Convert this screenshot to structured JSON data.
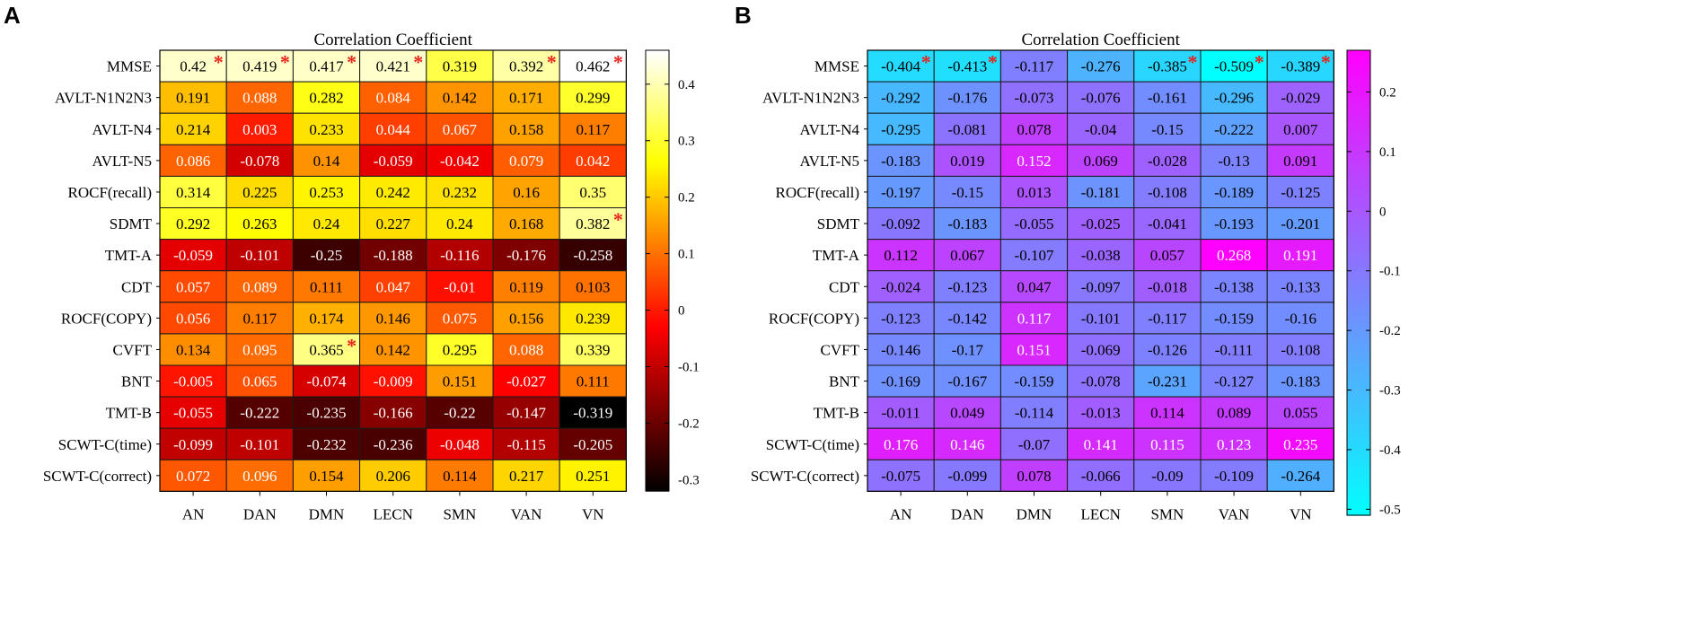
{
  "chart_data": [
    {
      "panel": "A",
      "type": "heatmap",
      "title": "Correlation Coefficient",
      "rows": [
        "MMSE",
        "AVLT-N1N2N3",
        "AVLT-N4",
        "AVLT-N5",
        "ROCF(recall)",
        "SDMT",
        "TMT-A",
        "CDT",
        "ROCF(COPY)",
        "CVFT",
        "BNT",
        "TMT-B",
        "SCWT-C(time)",
        "SCWT-C(correct)"
      ],
      "columns": [
        "AN",
        "DAN",
        "DMN",
        "LECN",
        "SMN",
        "VAN",
        "VN"
      ],
      "values": [
        [
          0.42,
          0.419,
          0.417,
          0.421,
          0.319,
          0.392,
          0.462
        ],
        [
          0.191,
          0.088,
          0.282,
          0.084,
          0.142,
          0.171,
          0.299
        ],
        [
          0.214,
          0.003,
          0.233,
          0.044,
          0.067,
          0.158,
          0.117
        ],
        [
          0.086,
          -0.078,
          0.14,
          -0.059,
          -0.042,
          0.079,
          0.042
        ],
        [
          0.314,
          0.225,
          0.253,
          0.242,
          0.232,
          0.16,
          0.35
        ],
        [
          0.292,
          0.263,
          0.24,
          0.227,
          0.24,
          0.168,
          0.382
        ],
        [
          -0.059,
          -0.101,
          -0.25,
          -0.188,
          -0.116,
          -0.176,
          -0.258
        ],
        [
          0.057,
          0.089,
          0.111,
          0.047,
          -0.01,
          0.119,
          0.103
        ],
        [
          0.056,
          0.117,
          0.174,
          0.146,
          0.075,
          0.156,
          0.239
        ],
        [
          0.134,
          0.095,
          0.365,
          0.142,
          0.295,
          0.088,
          0.339
        ],
        [
          -0.005,
          0.065,
          -0.074,
          -0.009,
          0.151,
          -0.027,
          0.111
        ],
        [
          -0.055,
          -0.222,
          -0.235,
          -0.166,
          -0.22,
          -0.147,
          -0.319
        ],
        [
          -0.099,
          -0.101,
          -0.232,
          -0.236,
          -0.048,
          -0.115,
          -0.205
        ],
        [
          0.072,
          0.096,
          0.154,
          0.206,
          0.114,
          0.217,
          0.251
        ]
      ],
      "labels": [
        [
          "0.42",
          "0.419",
          "0.417",
          "0.421",
          "0.319",
          "0.392",
          "0.462"
        ],
        [
          "0.191",
          "0.088",
          "0.282",
          "0.084",
          "0.142",
          "0.171",
          "0.299"
        ],
        [
          "0.214",
          "0.003",
          "0.233",
          "0.044",
          "0.067",
          "0.158",
          "0.117"
        ],
        [
          "0.086",
          "-0.078",
          "0.14",
          "-0.059",
          "-0.042",
          "0.079",
          "0.042"
        ],
        [
          "0.314",
          "0.225",
          "0.253",
          "0.242",
          "0.232",
          "0.16",
          "0.35"
        ],
        [
          "0.292",
          "0.263",
          "0.24",
          "0.227",
          "0.24",
          "0.168",
          "0.382"
        ],
        [
          "-0.059",
          "-0.101",
          "-0.25",
          "-0.188",
          "-0.116",
          "-0.176",
          "-0.258"
        ],
        [
          "0.057",
          "0.089",
          "0.111",
          "0.047",
          "-0.01",
          "0.119",
          "0.103"
        ],
        [
          "0.056",
          "0.117",
          "0.174",
          "0.146",
          "0.075",
          "0.156",
          "0.239"
        ],
        [
          "0.134",
          "0.095",
          "0.365",
          "0.142",
          "0.295",
          "0.088",
          "0.339"
        ],
        [
          "-0.005",
          "0.065",
          "-0.074",
          "-0.009",
          "0.151",
          "-0.027",
          "0.111"
        ],
        [
          "-0.055",
          "-0.222",
          "-0.235",
          "-0.166",
          "-0.22",
          "-0.147",
          "-0.319"
        ],
        [
          "-0.099",
          "-0.101",
          "-0.232",
          "-0.236",
          "-0.048",
          "-0.115",
          "-0.205"
        ],
        [
          "0.072",
          "0.096",
          "0.154",
          "0.206",
          "0.114",
          "0.217",
          "0.251"
        ]
      ],
      "significant": [
        [
          0,
          0
        ],
        [
          0,
          1
        ],
        [
          0,
          2
        ],
        [
          0,
          3
        ],
        [
          0,
          5
        ],
        [
          0,
          6
        ],
        [
          5,
          6
        ],
        [
          9,
          2
        ]
      ],
      "significance_marker": "*",
      "colormap": "hot",
      "colorbar_range": [
        -0.32,
        0.46
      ],
      "colorbar_ticks": [
        0.4,
        0.3,
        0.2,
        0.1,
        0,
        -0.1,
        -0.2,
        -0.3
      ],
      "colorbar_tick_labels": [
        "0.4",
        "0.3",
        "0.2",
        "0.1",
        "0",
        "-0.1",
        "-0.2",
        "-0.3"
      ]
    },
    {
      "panel": "B",
      "type": "heatmap",
      "title": "Correlation Coefficient",
      "rows": [
        "MMSE",
        "AVLT-N1N2N3",
        "AVLT-N4",
        "AVLT-N5",
        "ROCF(recall)",
        "SDMT",
        "TMT-A",
        "CDT",
        "ROCF(COPY)",
        "CVFT",
        "BNT",
        "TMT-B",
        "SCWT-C(time)",
        "SCWT-C(correct)"
      ],
      "columns": [
        "AN",
        "DAN",
        "DMN",
        "LECN",
        "SMN",
        "VAN",
        "VN"
      ],
      "values": [
        [
          -0.404,
          -0.413,
          -0.117,
          -0.276,
          -0.385,
          -0.509,
          -0.389
        ],
        [
          -0.292,
          -0.176,
          -0.073,
          -0.076,
          -0.161,
          -0.296,
          -0.029
        ],
        [
          -0.295,
          -0.081,
          0.078,
          -0.04,
          -0.15,
          -0.222,
          0.007
        ],
        [
          -0.183,
          0.019,
          0.152,
          0.069,
          -0.028,
          -0.13,
          0.091
        ],
        [
          -0.197,
          -0.15,
          0.013,
          -0.181,
          -0.108,
          -0.189,
          -0.125
        ],
        [
          -0.092,
          -0.183,
          -0.055,
          -0.025,
          -0.041,
          -0.193,
          -0.201
        ],
        [
          0.112,
          0.067,
          -0.107,
          -0.038,
          0.057,
          0.268,
          0.191
        ],
        [
          -0.024,
          -0.123,
          0.047,
          -0.097,
          -0.018,
          -0.138,
          -0.133
        ],
        [
          -0.123,
          -0.142,
          0.117,
          -0.101,
          -0.117,
          -0.159,
          -0.16
        ],
        [
          -0.146,
          -0.17,
          0.151,
          -0.069,
          -0.126,
          -0.111,
          -0.108
        ],
        [
          -0.169,
          -0.167,
          -0.159,
          -0.078,
          -0.231,
          -0.127,
          -0.183
        ],
        [
          -0.011,
          0.049,
          -0.114,
          -0.013,
          0.114,
          0.089,
          0.055
        ],
        [
          0.176,
          0.146,
          -0.07,
          0.141,
          0.115,
          0.123,
          0.235
        ],
        [
          -0.075,
          -0.099,
          0.078,
          -0.066,
          -0.09,
          -0.109,
          -0.264
        ]
      ],
      "labels": [
        [
          "-0.404",
          "-0.413",
          "-0.117",
          "-0.276",
          "-0.385",
          "-0.509",
          "-0.389"
        ],
        [
          "-0.292",
          "-0.176",
          "-0.073",
          "-0.076",
          "-0.161",
          "-0.296",
          "-0.029"
        ],
        [
          "-0.295",
          "-0.081",
          "0.078",
          "-0.04",
          "-0.15",
          "-0.222",
          "0.007"
        ],
        [
          "-0.183",
          "0.019",
          "0.152",
          "0.069",
          "-0.028",
          "-0.13",
          "0.091"
        ],
        [
          "-0.197",
          "-0.15",
          "0.013",
          "-0.181",
          "-0.108",
          "-0.189",
          "-0.125"
        ],
        [
          "-0.092",
          "-0.183",
          "-0.055",
          "-0.025",
          "-0.041",
          "-0.193",
          "-0.201"
        ],
        [
          "0.112",
          "0.067",
          "-0.107",
          "-0.038",
          "0.057",
          "0.268",
          "0.191"
        ],
        [
          "-0.024",
          "-0.123",
          "0.047",
          "-0.097",
          "-0.018",
          "-0.138",
          "-0.133"
        ],
        [
          "-0.123",
          "-0.142",
          "0.117",
          "-0.101",
          "-0.117",
          "-0.159",
          "-0.16"
        ],
        [
          "-0.146",
          "-0.17",
          "0.151",
          "-0.069",
          "-0.126",
          "-0.111",
          "-0.108"
        ],
        [
          "-0.169",
          "-0.167",
          "-0.159",
          "-0.078",
          "-0.231",
          "-0.127",
          "-0.183"
        ],
        [
          "-0.011",
          "0.049",
          "-0.114",
          "-0.013",
          "0.114",
          "0.089",
          "0.055"
        ],
        [
          "0.176",
          "0.146",
          "-0.07",
          "0.141",
          "0.115",
          "0.123",
          "0.235"
        ],
        [
          "-0.075",
          "-0.099",
          "0.078",
          "-0.066",
          "-0.09",
          "-0.109",
          "-0.264"
        ]
      ],
      "significant": [
        [
          0,
          0
        ],
        [
          0,
          1
        ],
        [
          0,
          4
        ],
        [
          0,
          5
        ],
        [
          0,
          6
        ]
      ],
      "significance_marker": "*",
      "colormap": "cool",
      "colorbar_range": [
        -0.51,
        0.27
      ],
      "colorbar_ticks": [
        0.2,
        0.1,
        0,
        -0.1,
        -0.2,
        -0.3,
        -0.4,
        -0.5
      ],
      "colorbar_tick_labels": [
        "0.2",
        "0.1",
        "0",
        "-0.1",
        "-0.2",
        "-0.3",
        "-0.4",
        "-0.5"
      ]
    }
  ]
}
